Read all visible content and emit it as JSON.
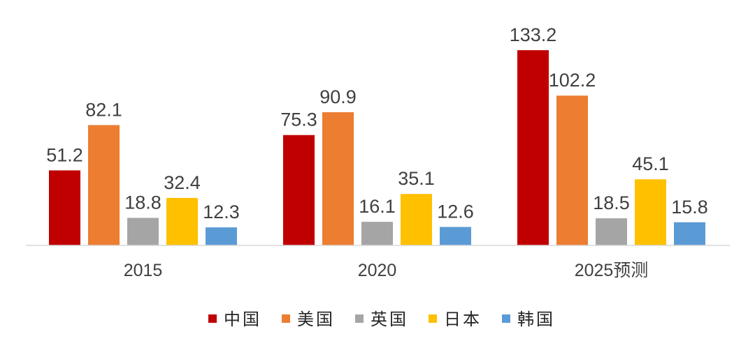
{
  "chart_data": {
    "type": "bar",
    "categories": [
      "2015",
      "2020",
      "2025预测"
    ],
    "series": [
      {
        "name": "中国",
        "color": "#C00000",
        "values": [
          51.2,
          75.3,
          133.2
        ]
      },
      {
        "name": "美国",
        "color": "#ED7D31",
        "values": [
          82.1,
          90.9,
          102.2
        ]
      },
      {
        "name": "英国",
        "color": "#A5A5A5",
        "values": [
          18.8,
          16.1,
          18.5
        ]
      },
      {
        "name": "日本",
        "color": "#FFC000",
        "values": [
          32.4,
          35.1,
          45.1
        ]
      },
      {
        "name": "韩国",
        "color": "#5B9BD5",
        "values": [
          12.3,
          12.6,
          15.8
        ]
      }
    ],
    "title": "",
    "xlabel": "",
    "ylabel": "",
    "ylim": [
      0,
      133.2
    ],
    "grid": false,
    "data_labels": true,
    "legend_position": "bottom"
  }
}
